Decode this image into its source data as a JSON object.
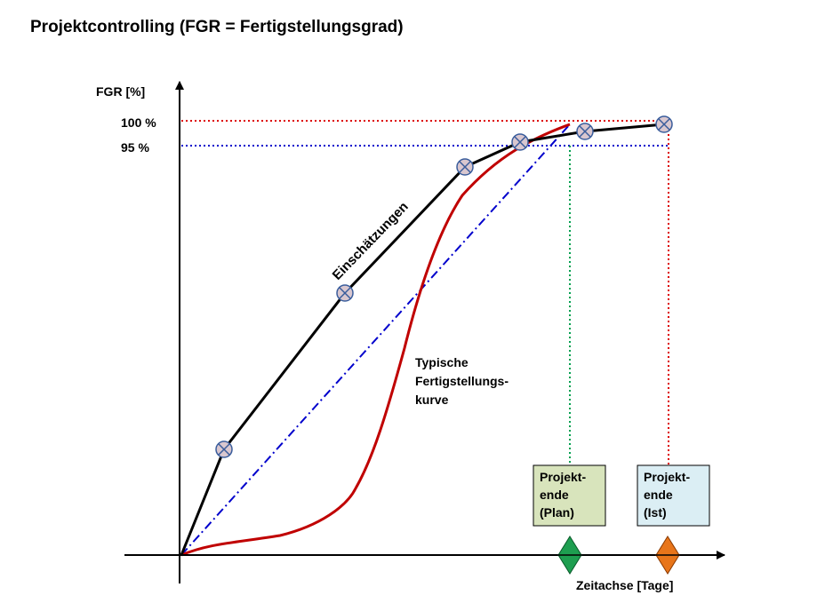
{
  "title": "Projektcontrolling (FGR = Fertigstellungsgrad)",
  "axes": {
    "y_label": "FGR [%]",
    "x_label": "Zeitachse [Tage]",
    "tick_100": "100 %",
    "tick_95": "95 %"
  },
  "labels": {
    "estimates": "Einschätzungen",
    "typical_curve": [
      "Typische",
      "Fertigstellungs-",
      "kurve"
    ]
  },
  "milestones": {
    "plan": {
      "lines": [
        "Projekt-",
        "ende",
        "(Plan)"
      ],
      "box_color": "#d8e4bc",
      "diamond_color": "#1e9e50"
    },
    "actual": {
      "lines": [
        "Projekt-",
        "ende",
        "(Ist)"
      ],
      "box_color": "#dbeef4",
      "diamond_color": "#e8751a"
    }
  },
  "colors": {
    "estimates_line": "#000000",
    "typical_curve": "#c00000",
    "plan_dashdot": "#0000cc",
    "fgr_100_guide": "#dd0000",
    "fgr_95_guide": "#0000cc",
    "plan_end_guide": "#00a050",
    "actual_end_guide": "#dd0000"
  }
}
